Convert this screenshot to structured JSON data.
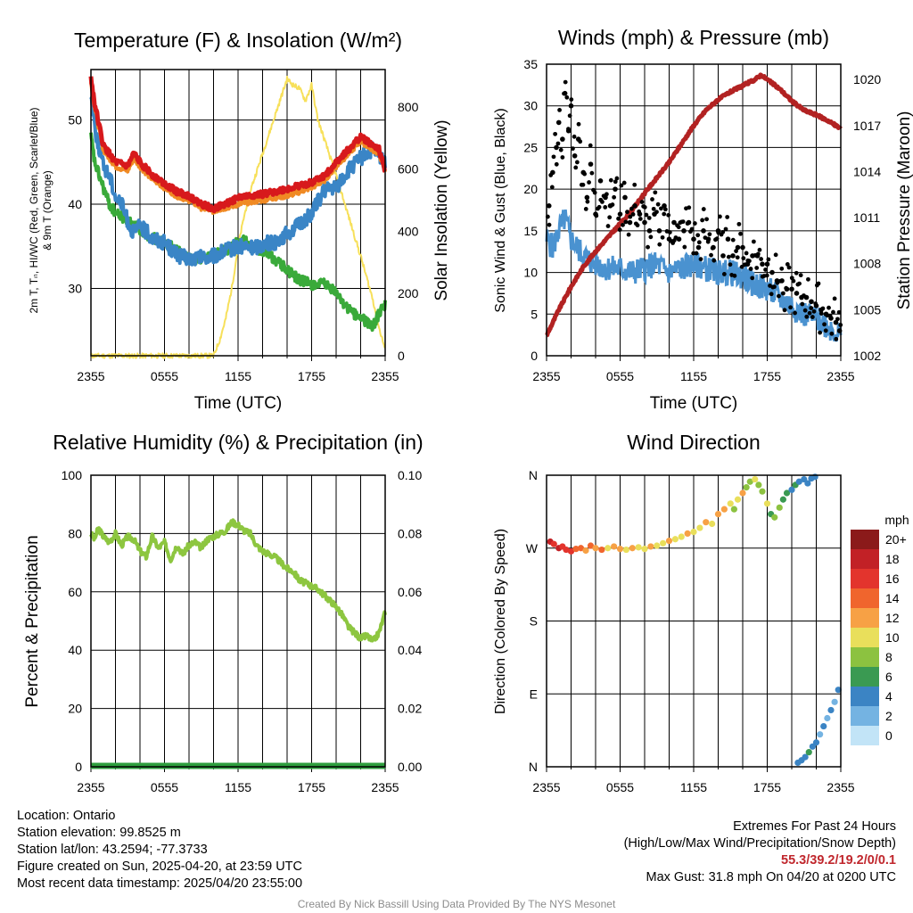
{
  "panels": {
    "temp": {
      "title": "Temperature (F) & Insolation (W/m²)",
      "ylabel_lines": [
        "2m T, Tₙ, HI/WC (Red, Green, Scarlet/Blue)",
        "& 9m T (Orange)"
      ],
      "y2label": "Solar Insolation (Yellow)",
      "xlabel": "Time (UTC)"
    },
    "wind": {
      "title": "Winds (mph) & Pressure (mb)",
      "ylabel": "Sonic Wind & Gust (Blue, Black)",
      "y2label": "Station Pressure (Maroon)",
      "xlabel": "Time (UTC)"
    },
    "rh": {
      "title": "Relative Humidity (%) & Precipitation (in)",
      "ylabel": "Percent & Precipitation"
    },
    "dir": {
      "title": "Wind Direction",
      "ylabel": "Direction (Colored By Speed)",
      "legend_unit": "mph"
    }
  },
  "chart_data": [
    {
      "type": "line",
      "title": "Temperature (F) & Insolation (W/m²)",
      "xlabel": "Time (UTC)",
      "x_ticks": [
        "2355",
        "0555",
        "1155",
        "1755",
        "2355"
      ],
      "xlim_hours": [
        0,
        24
      ],
      "ylim": [
        22,
        56
      ],
      "y_ticks": [
        "30",
        "40",
        "50"
      ],
      "y2lim": [
        0,
        920
      ],
      "y2_ticks": [
        "0",
        "200",
        "400",
        "600",
        "800"
      ],
      "grid": true,
      "series": [
        {
          "name": "Red",
          "axis": "left",
          "color": "#d7191c",
          "x": [
            0,
            0.3,
            1,
            2,
            3,
            3.5,
            4,
            5,
            6,
            7,
            8,
            9,
            10,
            11,
            12,
            13,
            14,
            15,
            16,
            17,
            18,
            19,
            20,
            21,
            22,
            22.5,
            23,
            23.5,
            24
          ],
          "y": [
            55,
            52,
            47,
            45,
            44.5,
            46,
            45,
            43.5,
            42.5,
            41.5,
            41,
            40,
            39.5,
            40,
            40.8,
            41,
            41.2,
            41.5,
            41.8,
            42.2,
            42.6,
            43.3,
            45,
            46.5,
            48,
            47.5,
            47,
            46.5,
            44
          ]
        },
        {
          "name": "Orange",
          "axis": "left",
          "color": "#f08a24",
          "x": [
            0,
            0.3,
            1,
            2,
            3,
            3.5,
            4,
            5,
            6,
            7,
            8,
            9,
            10,
            11,
            12,
            13,
            14,
            15,
            16,
            17,
            18,
            19,
            20,
            21,
            22,
            22.5,
            23,
            23.5,
            24
          ],
          "y": [
            54.5,
            51.5,
            46.5,
            44.5,
            44,
            45.5,
            44.5,
            43,
            42,
            41,
            40.5,
            39.6,
            39.2,
            39.6,
            40,
            40.3,
            40.5,
            40.8,
            41,
            41.5,
            42,
            42.8,
            44.5,
            46,
            47.5,
            47,
            46.5,
            46,
            44
          ]
        },
        {
          "name": "Blue",
          "axis": "left",
          "color": "#3a85c6",
          "x": [
            0,
            0.4,
            1,
            1.5,
            2,
            2.5,
            3,
            3.5,
            4,
            5,
            6,
            7,
            8,
            9,
            10,
            11,
            12,
            13,
            14,
            15,
            16,
            17,
            18,
            19,
            20,
            21,
            22,
            23,
            24
          ],
          "y": [
            53,
            48.5,
            44.5,
            43.5,
            41,
            40,
            38,
            36.5,
            37.5,
            36,
            35.5,
            34,
            33.5,
            33.6,
            33.8,
            34.5,
            35,
            34.8,
            35.2,
            35.5,
            36.5,
            37.5,
            39,
            41.5,
            42,
            44,
            45.5,
            46.5,
            45
          ]
        },
        {
          "name": "Green",
          "axis": "left",
          "color": "#3aaa3a",
          "x": [
            0,
            0.3,
            1,
            1.5,
            2,
            2.5,
            3,
            3.5,
            4,
            5,
            6,
            7,
            8,
            9,
            10,
            11,
            12,
            12.5,
            13,
            14,
            15,
            16,
            17,
            18,
            19,
            20,
            21,
            22,
            23,
            23.5,
            24
          ],
          "y": [
            48,
            45,
            42,
            40,
            39,
            38.5,
            38,
            37.5,
            37,
            36,
            35.5,
            34.5,
            33.5,
            33.6,
            34,
            34.5,
            35.5,
            35.8,
            35,
            34.5,
            33.5,
            32.2,
            31,
            30.5,
            30.5,
            29.5,
            27.5,
            26.5,
            25.5,
            27,
            28
          ]
        },
        {
          "name": "Yellow",
          "axis": "right",
          "color": "#f7e05a",
          "x": [
            0,
            6,
            10,
            10.5,
            11,
            11.5,
            12,
            12.5,
            13,
            14,
            15,
            15.5,
            16,
            16.5,
            17,
            17.5,
            18,
            18.5,
            19,
            20,
            21,
            22,
            23,
            23.5,
            24
          ],
          "y": [
            0,
            0,
            0,
            50,
            120,
            220,
            350,
            450,
            530,
            650,
            770,
            830,
            890,
            870,
            860,
            820,
            870,
            760,
            700,
            580,
            450,
            320,
            180,
            90,
            20
          ]
        }
      ]
    },
    {
      "type": "line",
      "title": "Winds (mph) & Pressure (mb)",
      "xlabel": "Time (UTC)",
      "x_ticks": [
        "2355",
        "0555",
        "1155",
        "1755",
        "2355"
      ],
      "xlim_hours": [
        0,
        24
      ],
      "ylim": [
        0,
        35
      ],
      "y_ticks": [
        "0",
        "5",
        "10",
        "15",
        "20",
        "25",
        "30",
        "35"
      ],
      "y2lim": [
        1002,
        1021
      ],
      "y2_ticks": [
        "1002",
        "1005",
        "1008",
        "1011",
        "1014",
        "1017",
        "1020"
      ],
      "grid": true,
      "series": [
        {
          "name": "Sonic Wind",
          "axis": "left",
          "color": "#4a92d0",
          "x": [
            0,
            0.5,
            1,
            1.5,
            2,
            2.5,
            3,
            3.5,
            4,
            5,
            6,
            7,
            8,
            9,
            10,
            11,
            12,
            13,
            14,
            15,
            16,
            17,
            18,
            19,
            20,
            21,
            22,
            23,
            24
          ],
          "y": [
            14,
            13,
            15,
            16.5,
            14,
            13,
            12,
            11.5,
            11,
            10.5,
            10.5,
            10,
            10.5,
            11,
            10,
            10.5,
            11,
            10.5,
            10,
            10,
            9.5,
            8.5,
            8,
            7,
            6,
            5,
            4.5,
            3.5,
            2.5
          ]
        },
        {
          "name": "Station Pressure",
          "axis": "right",
          "color": "#b22222",
          "x": [
            0,
            1,
            2,
            3,
            4,
            5,
            6,
            7,
            8,
            9,
            10,
            11,
            12,
            13,
            14,
            15,
            16,
            17,
            17.5,
            18,
            19,
            20,
            21,
            22,
            23,
            24
          ],
          "y": [
            1003.3,
            1005,
            1006.5,
            1007.8,
            1008.8,
            1009.7,
            1010.6,
            1011.5,
            1012.6,
            1013.6,
            1014.6,
            1015.8,
            1017,
            1018,
            1018.7,
            1019.2,
            1019.6,
            1020,
            1020.3,
            1020,
            1019.4,
            1018.6,
            1018,
            1017.7,
            1017.3,
            1016.8
          ]
        }
      ],
      "gust_points": {
        "name": "Gust",
        "axis": "left",
        "color": "#000000",
        "x": [
          0.2,
          0.5,
          0.8,
          1.0,
          1.3,
          1.5,
          1.8,
          2.0,
          2.3,
          2.6,
          3.0,
          3.3,
          3.6,
          4.0,
          4.4,
          4.8,
          5.2,
          5.6,
          6.0,
          6.4,
          6.8,
          7.2,
          7.6,
          8.0,
          8.4,
          8.8,
          9.2,
          9.6,
          10.0,
          10.4,
          10.8,
          11.2,
          11.6,
          12.0,
          12.4,
          12.8,
          13.2,
          13.6,
          14.0,
          14.4,
          14.8,
          15.2,
          15.6,
          16.0,
          16.4,
          16.8,
          17.2,
          17.6,
          18.0,
          18.4,
          18.8,
          19.2,
          19.6,
          20.0,
          20.4,
          20.8,
          21.2,
          21.6,
          22.0,
          22.4,
          22.8,
          23.2,
          23.6,
          23.9
        ],
        "y": [
          18,
          22,
          25,
          28,
          26,
          31.5,
          27,
          30,
          24,
          26,
          22,
          19,
          23,
          17,
          21,
          19,
          18,
          20,
          17,
          19,
          16,
          18,
          17,
          16,
          15,
          17,
          15,
          18,
          14,
          16,
          14,
          15,
          16,
          14,
          13,
          15,
          14,
          13,
          15,
          12,
          14,
          12,
          13,
          13,
          11,
          12,
          12,
          11,
          11,
          10,
          9,
          9,
          8,
          8,
          7.5,
          7,
          7,
          6.5,
          6,
          5.5,
          5,
          4.5,
          4,
          3
        ]
      }
    },
    {
      "type": "line",
      "title": "Relative Humidity (%) & Precipitation (in)",
      "x_ticks": [
        "2355",
        "0555",
        "1155",
        "1755",
        "2355"
      ],
      "xlim_hours": [
        0,
        24
      ],
      "ylim": [
        0,
        100
      ],
      "y_ticks": [
        "0",
        "20",
        "40",
        "60",
        "80",
        "100"
      ],
      "y2lim": [
        0,
        0.1
      ],
      "y2_ticks": [
        "0.00",
        "0.02",
        "0.04",
        "0.06",
        "0.08",
        "0.10"
      ],
      "grid": true,
      "series": [
        {
          "name": "Relative Humidity",
          "axis": "left",
          "color": "#8dc640",
          "x": [
            0,
            0.3,
            0.6,
            1,
            1.5,
            2,
            2.5,
            3,
            3.5,
            4,
            4.5,
            5,
            5.5,
            6,
            6.5,
            7,
            7.5,
            8,
            8.5,
            9,
            9.5,
            10,
            10.5,
            11,
            11.5,
            12,
            12.5,
            13,
            13.5,
            14,
            14.5,
            15,
            15.5,
            16,
            16.5,
            17,
            17.5,
            18,
            18.5,
            19,
            19.5,
            20,
            20.5,
            21,
            21.5,
            22,
            22.5,
            23,
            23.5,
            24
          ],
          "y": [
            80,
            78,
            82,
            79,
            77,
            80,
            76,
            79,
            78,
            74,
            72,
            79,
            75,
            77,
            71,
            76,
            73,
            76,
            77,
            75,
            78,
            79,
            80,
            81,
            84,
            83,
            81,
            80,
            76,
            74,
            73,
            72,
            70,
            68,
            67,
            64,
            63,
            62,
            61,
            59,
            57,
            55,
            52,
            48,
            46,
            44,
            45,
            43,
            46,
            53
          ]
        },
        {
          "name": "Precipitation",
          "axis": "right",
          "color": "#2e9e3e",
          "x": [
            0,
            24
          ],
          "y": [
            0,
            0
          ]
        }
      ]
    },
    {
      "type": "scatter",
      "title": "Wind Direction",
      "x_ticks": [
        "2355",
        "0555",
        "1155",
        "1755",
        "2355"
      ],
      "xlim_hours": [
        0,
        24
      ],
      "y_ticks": [
        "N",
        "E",
        "S",
        "W",
        "N"
      ],
      "ylim_deg": [
        0,
        360
      ],
      "grid": true,
      "legend": {
        "unit": "mph",
        "labels": [
          "20+",
          "18",
          "16",
          "14",
          "12",
          "10",
          "8",
          "6",
          "4",
          "2",
          "0"
        ],
        "colors": [
          "#8b1a1a",
          "#c22126",
          "#e3342d",
          "#f0652d",
          "#f7a145",
          "#e9df5b",
          "#8cc240",
          "#3a9a52",
          "#3b84c4",
          "#74b3e2",
          "#c2e4f7"
        ]
      },
      "points": {
        "x": [
          0.3,
          0.6,
          1,
          1.3,
          1.6,
          2,
          2.4,
          2.8,
          3.2,
          3.6,
          4,
          4.5,
          5,
          5.5,
          6,
          6.5,
          7,
          7.5,
          8,
          8.5,
          9,
          9.5,
          10,
          10.5,
          11,
          11.5,
          12,
          12.5,
          13,
          13.5,
          14,
          14.5,
          15,
          15.3,
          15.6,
          16,
          16.3,
          16.6,
          17,
          17.3,
          17.6,
          18,
          18.3,
          18.6,
          19,
          19.3,
          19.6,
          20,
          20.3,
          20.6,
          21,
          21.3,
          21.6,
          21.9,
          20.5,
          20.8,
          21.1,
          21.4,
          21.7,
          22,
          22.3,
          22.6,
          22.9,
          23.2,
          23.5,
          23.8
        ],
        "deg": [
          278,
          275,
          270,
          272,
          268,
          266,
          269,
          270,
          267,
          273,
          270,
          268,
          270,
          272,
          269,
          268,
          270,
          271,
          269,
          272,
          273,
          276,
          279,
          281,
          284,
          288,
          290,
          295,
          302,
          300,
          312,
          318,
          325,
          318,
          330,
          338,
          345,
          352,
          355,
          348,
          340,
          325,
          312,
          308,
          320,
          330,
          338,
          342,
          348,
          352,
          355,
          350,
          356,
          358,
          5,
          8,
          12,
          18,
          25,
          30,
          40,
          50,
          60,
          70,
          80,
          95
        ],
        "speed": [
          18,
          16,
          17,
          16,
          15,
          16,
          14,
          13,
          12,
          13,
          12,
          13,
          10,
          11,
          12,
          9,
          11,
          10,
          10,
          11,
          9,
          10,
          12,
          10,
          9,
          11,
          10,
          9,
          11,
          10,
          12,
          11,
          10,
          8,
          9,
          12,
          8,
          7,
          9,
          8,
          7,
          9,
          6,
          7,
          8,
          5,
          6,
          4,
          5,
          4,
          3,
          4,
          3,
          4,
          4,
          3,
          4,
          5,
          3,
          4,
          2,
          3,
          2,
          3,
          2,
          3
        ]
      }
    }
  ],
  "footer": {
    "left_lines": [
      "Location: Ontario",
      "Station elevation: 99.8525 m",
      "Station lat/lon: 43.2594; -77.3733",
      "Figure created on Sun, 2025-04-20, at 23:59 UTC",
      "Most recent data timestamp: 2025/04/20 23:55:00"
    ],
    "right_title": "Extremes For Past 24 Hours",
    "right_subtitle": "(High/Low/Max Wind/Precipitation/Snow Depth)",
    "extremes": "55.3/39.2/19.2/0/0.1",
    "max_gust": "Max Gust: 31.8 mph On 04/20 at 0200 UTC",
    "credit": "Created By Nick Bassill Using Data Provided By The NYS Mesonet"
  }
}
